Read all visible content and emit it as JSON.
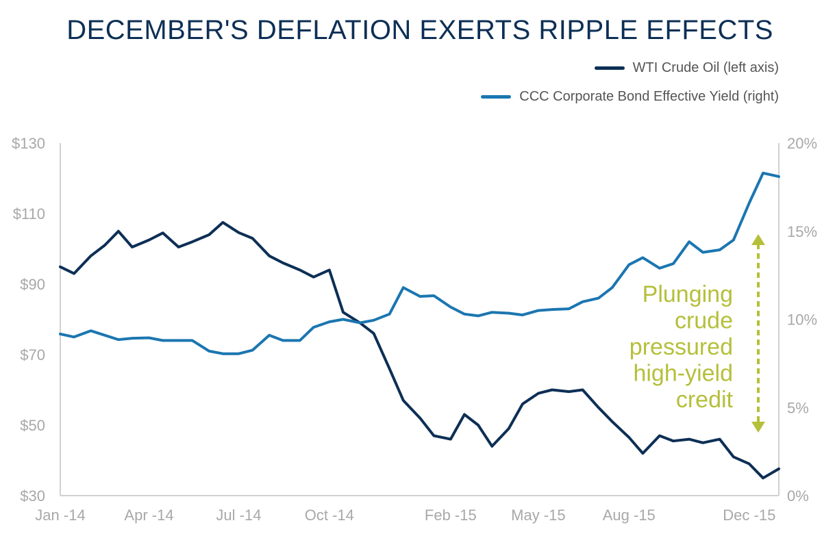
{
  "title": "DECEMBER'S DEFLATION EXERTS RIPPLE EFFECTS",
  "legend": [
    {
      "label": "WTI Crude Oil (left axis)",
      "color": "#0d2f55"
    },
    {
      "label": "CCC Corporate Bond Effective Yield (right)",
      "color": "#1b76b1"
    }
  ],
  "annotation": {
    "lines": [
      "Plunging",
      "crude",
      "pressured",
      "high-yield",
      "credit"
    ],
    "color": "#b5bf3a"
  },
  "chart_data": {
    "type": "line",
    "title": "DECEMBER'S DEFLATION EXERTS RIPPLE EFFECTS",
    "legend_position": "top-right",
    "grid": false,
    "x": [
      "2014-01-01",
      "2014-01-15",
      "2014-02-01",
      "2014-02-15",
      "2014-03-01",
      "2014-03-15",
      "2014-04-01",
      "2014-04-15",
      "2014-05-01",
      "2014-05-15",
      "2014-06-01",
      "2014-06-15",
      "2014-07-01",
      "2014-07-15",
      "2014-08-01",
      "2014-08-15",
      "2014-09-01",
      "2014-09-15",
      "2014-10-01",
      "2014-10-15",
      "2014-11-01",
      "2014-11-15",
      "2014-12-01",
      "2014-12-15",
      "2015-01-01",
      "2015-01-15",
      "2015-02-01",
      "2015-02-15",
      "2015-03-01",
      "2015-03-15",
      "2015-04-01",
      "2015-04-15",
      "2015-05-01",
      "2015-05-15",
      "2015-06-01",
      "2015-06-15",
      "2015-07-01",
      "2015-07-15",
      "2015-08-01",
      "2015-08-15",
      "2015-09-01",
      "2015-09-15",
      "2015-10-01",
      "2015-10-15",
      "2015-11-01",
      "2015-11-15",
      "2015-12-01",
      "2015-12-15",
      "2015-12-31"
    ],
    "x_range": [
      "2014-01-01",
      "2015-12-31"
    ],
    "x_ticks": [
      {
        "value": "2014-01-01",
        "label": "Jan -14"
      },
      {
        "value": "2014-04-01",
        "label": "Apr -14"
      },
      {
        "value": "2014-07-01",
        "label": "Jul -14"
      },
      {
        "value": "2014-10-01",
        "label": "Oct -14"
      },
      {
        "value": "2015-02-01",
        "label": "Feb -15"
      },
      {
        "value": "2015-05-01",
        "label": "May -15"
      },
      {
        "value": "2015-08-01",
        "label": "Aug -15"
      },
      {
        "value": "2015-12-01",
        "label": "Dec -15"
      }
    ],
    "y_left": {
      "range": [
        30,
        130
      ],
      "ticks": [
        30,
        50,
        70,
        90,
        110,
        130
      ],
      "tick_labels": [
        "$30",
        "$50",
        "$70",
        "$90",
        "$110",
        "$130"
      ]
    },
    "y_right": {
      "range": [
        0,
        20
      ],
      "ticks": [
        0,
        5,
        10,
        15,
        20
      ],
      "tick_labels": [
        "0%",
        "5%",
        "10%",
        "15%",
        "20%"
      ]
    },
    "series": [
      {
        "name": "WTI Crude Oil (left axis)",
        "axis": "left",
        "color": "#0d2f55",
        "values": [
          94.9,
          93,
          98,
          101,
          105,
          100.5,
          102.5,
          104.5,
          100.5,
          102,
          104,
          107.5,
          104.6,
          103,
          98,
          96,
          94,
          92,
          94,
          82,
          79,
          76,
          66,
          57,
          52,
          47,
          46,
          53,
          50,
          44,
          49,
          56,
          59,
          60,
          59.5,
          60,
          55,
          51,
          46.5,
          42,
          47,
          45.5,
          46,
          45,
          46,
          41,
          39,
          35,
          37.6
        ]
      },
      {
        "name": "CCC Corporate Bond Effective Yield (right)",
        "axis": "right",
        "color": "#1b76b1",
        "values": [
          9.17,
          9.0,
          9.35,
          9.1,
          8.85,
          8.93,
          8.95,
          8.8,
          8.8,
          8.8,
          8.2,
          8.05,
          8.05,
          8.25,
          9.1,
          8.8,
          8.8,
          9.55,
          9.86,
          10.0,
          9.8,
          9.95,
          10.3,
          11.8,
          11.3,
          11.34,
          10.7,
          10.3,
          10.2,
          10.4,
          10.35,
          10.25,
          10.5,
          10.56,
          10.6,
          11.0,
          11.2,
          11.8,
          13.1,
          13.5,
          12.9,
          13.16,
          14.4,
          13.8,
          13.94,
          14.5,
          16.6,
          18.3,
          18.1
        ]
      }
    ]
  }
}
